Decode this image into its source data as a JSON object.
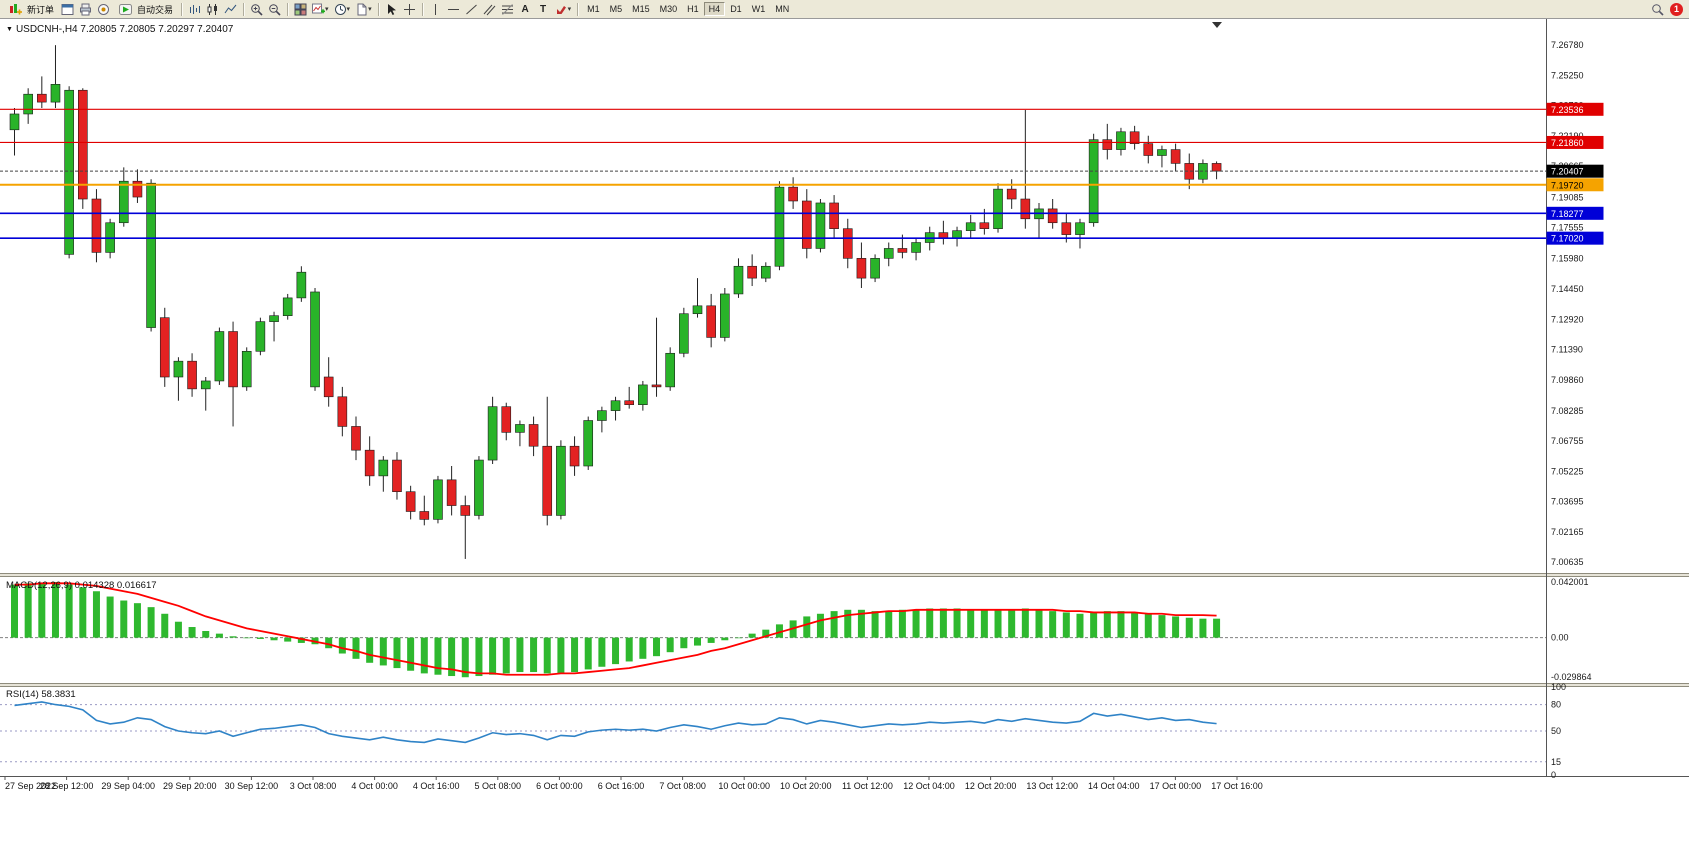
{
  "toolbar": {
    "new_order_label": "新订单",
    "auto_trading_label": "自动交易",
    "text_tool_label": "A",
    "label_tool_label": "T",
    "timeframes": [
      "M1",
      "M5",
      "M15",
      "M30",
      "H1",
      "H4",
      "D1",
      "W1",
      "MN"
    ],
    "active_timeframe": "H4",
    "notification_count": "1"
  },
  "chart_header": {
    "symbol_period": "USDCNH-,H4",
    "ohlc": "7.20805 7.20805 7.20297 7.20407"
  },
  "indicators": {
    "macd": {
      "name": "MACD(12,26,9)",
      "value_main": "0.014328",
      "value_signal": "0.016617"
    },
    "rsi": {
      "name": "RSI(14)",
      "value": "58.3831"
    }
  },
  "chart_data": [
    {
      "type": "candlestick",
      "symbol": "USDCNH-",
      "period": "H4",
      "open": "7.20805",
      "high": "7.20805",
      "low": "7.20297",
      "close": "7.20407",
      "y_range": [
        7.0014,
        7.279
      ],
      "y_axis_labels": [
        "7.26780",
        "7.25250",
        "7.23720",
        "7.22190",
        "7.20665",
        "7.19085",
        "7.17555",
        "7.15980",
        "7.14450",
        "7.12920",
        "7.11390",
        "7.09860",
        "7.08285",
        "7.06755",
        "7.05225",
        "7.03695",
        "7.02165",
        "7.00635"
      ],
      "x_labels": [
        "27 Sep 2022",
        "28 Sep 12:00",
        "29 Sep 04:00",
        "29 Sep 20:00",
        "30 Sep 12:00",
        "3 Oct 08:00",
        "4 Oct 00:00",
        "4 Oct 16:00",
        "5 Oct 08:00",
        "6 Oct 00:00",
        "6 Oct 16:00",
        "7 Oct 08:00",
        "10 Oct 00:00",
        "10 Oct 20:00",
        "11 Oct 12:00",
        "12 Oct 04:00",
        "12 Oct 20:00",
        "13 Oct 12:00",
        "14 Oct 04:00",
        "17 Oct 00:00",
        "17 Oct 16:00"
      ],
      "horizontal_lines": [
        {
          "price": 7.23536,
          "label": "7.23536",
          "color": "#e00000",
          "text_color": "#ffffff",
          "width": 1.2
        },
        {
          "price": 7.2186,
          "label": "7.21860",
          "color": "#e00000",
          "text_color": "#ffffff",
          "width": 1.2
        },
        {
          "price": 7.1972,
          "label": "7.19720",
          "color": "#f5a300",
          "text_color": "#000000",
          "width": 2
        },
        {
          "price": 7.18277,
          "label": "7.18277",
          "color": "#0000d8",
          "text_color": "#ffffff",
          "width": 1.6
        },
        {
          "price": 7.1702,
          "label": "7.17020",
          "color": "#0000d8",
          "text_color": "#ffffff",
          "width": 1.6
        }
      ],
      "current_price": {
        "value": 7.20407,
        "label": "7.20407",
        "box_color": "#000000",
        "text_color": "#ffffff"
      },
      "bull_color": "#29b329",
      "bear_color": "#e32222",
      "wick_color": "#222222",
      "candles": [
        [
          7.225,
          7.236,
          7.212,
          7.233
        ],
        [
          7.233,
          7.246,
          7.228,
          7.243
        ],
        [
          7.243,
          7.252,
          7.236,
          7.239
        ],
        [
          7.239,
          7.2678,
          7.236,
          7.248
        ],
        [
          7.162,
          7.247,
          7.16,
          7.245
        ],
        [
          7.245,
          7.246,
          7.185,
          7.19
        ],
        [
          7.19,
          7.195,
          7.158,
          7.163
        ],
        [
          7.163,
          7.18,
          7.16,
          7.178
        ],
        [
          7.178,
          7.206,
          7.176,
          7.199
        ],
        [
          7.199,
          7.205,
          7.188,
          7.191
        ],
        [
          7.125,
          7.2,
          7.123,
          7.198
        ],
        [
          7.13,
          7.135,
          7.095,
          7.1
        ],
        [
          7.1,
          7.11,
          7.088,
          7.108
        ],
        [
          7.108,
          7.112,
          7.09,
          7.094
        ],
        [
          7.094,
          7.1,
          7.083,
          7.098
        ],
        [
          7.098,
          7.125,
          7.096,
          7.123
        ],
        [
          7.123,
          7.128,
          7.075,
          7.095
        ],
        [
          7.095,
          7.115,
          7.093,
          7.113
        ],
        [
          7.113,
          7.13,
          7.111,
          7.128
        ],
        [
          7.128,
          7.133,
          7.118,
          7.131
        ],
        [
          7.131,
          7.142,
          7.129,
          7.14
        ],
        [
          7.14,
          7.156,
          7.138,
          7.153
        ],
        [
          7.095,
          7.145,
          7.093,
          7.143
        ],
        [
          7.1,
          7.11,
          7.085,
          7.09
        ],
        [
          7.09,
          7.095,
          7.07,
          7.075
        ],
        [
          7.075,
          7.08,
          7.058,
          7.063
        ],
        [
          7.063,
          7.07,
          7.045,
          7.05
        ],
        [
          7.05,
          7.06,
          7.042,
          7.058
        ],
        [
          7.058,
          7.062,
          7.038,
          7.042
        ],
        [
          7.042,
          7.045,
          7.028,
          7.032
        ],
        [
          7.032,
          7.04,
          7.025,
          7.028
        ],
        [
          7.028,
          7.05,
          7.026,
          7.048
        ],
        [
          7.048,
          7.055,
          7.03,
          7.035
        ],
        [
          7.035,
          7.04,
          7.008,
          7.03
        ],
        [
          7.03,
          7.06,
          7.028,
          7.058
        ],
        [
          7.058,
          7.09,
          7.056,
          7.085
        ],
        [
          7.085,
          7.087,
          7.068,
          7.072
        ],
        [
          7.072,
          7.078,
          7.065,
          7.076
        ],
        [
          7.076,
          7.08,
          7.06,
          7.065
        ],
        [
          7.065,
          7.09,
          7.025,
          7.03
        ],
        [
          7.03,
          7.068,
          7.028,
          7.065
        ],
        [
          7.065,
          7.07,
          7.05,
          7.055
        ],
        [
          7.055,
          7.08,
          7.053,
          7.078
        ],
        [
          7.078,
          7.085,
          7.072,
          7.083
        ],
        [
          7.083,
          7.09,
          7.078,
          7.088
        ],
        [
          7.088,
          7.095,
          7.084,
          7.086
        ],
        [
          7.086,
          7.098,
          7.083,
          7.096
        ],
        [
          7.096,
          7.13,
          7.09,
          7.095
        ],
        [
          7.095,
          7.115,
          7.093,
          7.112
        ],
        [
          7.112,
          7.135,
          7.11,
          7.132
        ],
        [
          7.132,
          7.15,
          7.13,
          7.136
        ],
        [
          7.136,
          7.142,
          7.115,
          7.12
        ],
        [
          7.12,
          7.145,
          7.118,
          7.142
        ],
        [
          7.142,
          7.16,
          7.14,
          7.156
        ],
        [
          7.156,
          7.162,
          7.146,
          7.15
        ],
        [
          7.15,
          7.158,
          7.148,
          7.156
        ],
        [
          7.156,
          7.199,
          7.154,
          7.196
        ],
        [
          7.196,
          7.201,
          7.185,
          7.189
        ],
        [
          7.189,
          7.195,
          7.16,
          7.165
        ],
        [
          7.165,
          7.19,
          7.163,
          7.188
        ],
        [
          7.188,
          7.192,
          7.17,
          7.175
        ],
        [
          7.175,
          7.18,
          7.155,
          7.16
        ],
        [
          7.16,
          7.168,
          7.145,
          7.15
        ],
        [
          7.15,
          7.162,
          7.148,
          7.16
        ],
        [
          7.16,
          7.168,
          7.156,
          7.165
        ],
        [
          7.165,
          7.172,
          7.16,
          7.163
        ],
        [
          7.163,
          7.17,
          7.159,
          7.168
        ],
        [
          7.168,
          7.176,
          7.164,
          7.173
        ],
        [
          7.173,
          7.179,
          7.167,
          7.17
        ],
        [
          7.17,
          7.176,
          7.166,
          7.174
        ],
        [
          7.174,
          7.182,
          7.17,
          7.178
        ],
        [
          7.178,
          7.185,
          7.172,
          7.175
        ],
        [
          7.175,
          7.198,
          7.173,
          7.195
        ],
        [
          7.195,
          7.2,
          7.185,
          7.19
        ],
        [
          7.19,
          7.235,
          7.175,
          7.18
        ],
        [
          7.18,
          7.188,
          7.17,
          7.185
        ],
        [
          7.185,
          7.19,
          7.175,
          7.178
        ],
        [
          7.178,
          7.183,
          7.168,
          7.172
        ],
        [
          7.172,
          7.18,
          7.165,
          7.178
        ],
        [
          7.178,
          7.223,
          7.176,
          7.22
        ],
        [
          7.22,
          7.228,
          7.21,
          7.215
        ],
        [
          7.215,
          7.226,
          7.212,
          7.224
        ],
        [
          7.224,
          7.227,
          7.215,
          7.218
        ],
        [
          7.218,
          7.222,
          7.208,
          7.212
        ],
        [
          7.212,
          7.217,
          7.206,
          7.215
        ],
        [
          7.215,
          7.218,
          7.204,
          7.208
        ],
        [
          7.208,
          7.213,
          7.195,
          7.2
        ],
        [
          7.2,
          7.21,
          7.198,
          7.208
        ],
        [
          7.208,
          7.209,
          7.2,
          7.2041
        ]
      ]
    },
    {
      "type": "macd",
      "title": "MACD(12,26,9)",
      "values": [
        "0.014328",
        "0.016617"
      ],
      "y_labels": [
        "0.042001",
        "0.00",
        "-0.029864"
      ],
      "y_range": [
        -0.0335,
        0.045
      ],
      "histogram_color": "#2eb82e",
      "signal_color": "#ff0000",
      "histogram": [
        0.04,
        0.041,
        0.041,
        0.042,
        0.04,
        0.038,
        0.035,
        0.031,
        0.028,
        0.026,
        0.023,
        0.018,
        0.012,
        0.008,
        0.005,
        0.003,
        0.001,
        0.0,
        -0.001,
        -0.002,
        -0.003,
        -0.004,
        -0.005,
        -0.008,
        -0.012,
        -0.016,
        -0.019,
        -0.021,
        -0.023,
        -0.025,
        -0.027,
        -0.028,
        -0.029,
        -0.0299,
        -0.029,
        -0.028,
        -0.027,
        -0.026,
        -0.026,
        -0.027,
        -0.027,
        -0.026,
        -0.024,
        -0.022,
        -0.02,
        -0.018,
        -0.016,
        -0.014,
        -0.011,
        -0.008,
        -0.006,
        -0.004,
        -0.002,
        0.0,
        0.003,
        0.006,
        0.01,
        0.013,
        0.016,
        0.018,
        0.02,
        0.021,
        0.021,
        0.02,
        0.02,
        0.021,
        0.021,
        0.022,
        0.022,
        0.022,
        0.021,
        0.021,
        0.021,
        0.021,
        0.022,
        0.021,
        0.02,
        0.019,
        0.018,
        0.019,
        0.02,
        0.02,
        0.019,
        0.018,
        0.017,
        0.016,
        0.015,
        0.0143,
        0.0143
      ],
      "signal": [
        0.04,
        0.04,
        0.041,
        0.041,
        0.041,
        0.04,
        0.039,
        0.037,
        0.035,
        0.033,
        0.03,
        0.027,
        0.024,
        0.02,
        0.016,
        0.013,
        0.01,
        0.007,
        0.005,
        0.003,
        0.001,
        -0.001,
        -0.003,
        -0.005,
        -0.008,
        -0.01,
        -0.013,
        -0.015,
        -0.017,
        -0.019,
        -0.021,
        -0.023,
        -0.024,
        -0.026,
        -0.027,
        -0.027,
        -0.028,
        -0.028,
        -0.028,
        -0.028,
        -0.027,
        -0.027,
        -0.026,
        -0.025,
        -0.024,
        -0.023,
        -0.021,
        -0.019,
        -0.017,
        -0.015,
        -0.013,
        -0.01,
        -0.008,
        -0.005,
        -0.002,
        0.001,
        0.004,
        0.007,
        0.01,
        0.013,
        0.015,
        0.017,
        0.018,
        0.019,
        0.02,
        0.02,
        0.021,
        0.021,
        0.021,
        0.021,
        0.021,
        0.021,
        0.021,
        0.021,
        0.021,
        0.021,
        0.021,
        0.02,
        0.02,
        0.019,
        0.019,
        0.019,
        0.019,
        0.018,
        0.018,
        0.017,
        0.017,
        0.017,
        0.0166
      ]
    },
    {
      "type": "rsi",
      "title": "RSI(14)",
      "value": "58.3831",
      "y_labels": [
        "100",
        "80",
        "50",
        "15",
        "0"
      ],
      "levels": [
        80,
        50,
        15
      ],
      "y_range": [
        0,
        100
      ],
      "line_color": "#2f83c7",
      "values": [
        79,
        81,
        83,
        80,
        78,
        74,
        62,
        58,
        60,
        65,
        63,
        55,
        50,
        48,
        47,
        50,
        44,
        48,
        52,
        53,
        55,
        57,
        54,
        47,
        44,
        42,
        40,
        43,
        40,
        38,
        37,
        41,
        39,
        37,
        42,
        48,
        46,
        47,
        45,
        40,
        45,
        44,
        49,
        51,
        52,
        51,
        52,
        50,
        54,
        57,
        55,
        52,
        56,
        59,
        57,
        58,
        65,
        63,
        58,
        62,
        60,
        57,
        54,
        56,
        58,
        57,
        58,
        60,
        59,
        60,
        61,
        59,
        63,
        61,
        64,
        62,
        60,
        59,
        61,
        70,
        67,
        69,
        66,
        63,
        65,
        62,
        63,
        60,
        58.38
      ]
    }
  ]
}
